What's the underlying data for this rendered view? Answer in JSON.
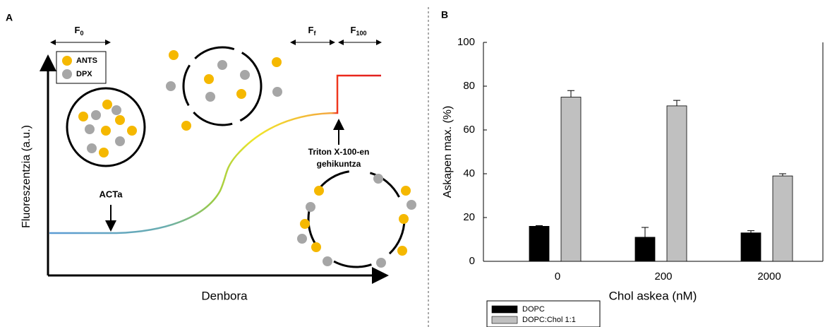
{
  "panel_a": {
    "label": "A",
    "f0": {
      "main": "F",
      "sub": "0"
    },
    "ff": {
      "main": "F",
      "sub": "f"
    },
    "f100": {
      "main": "F",
      "sub": "100"
    },
    "legend": [
      "ANTS",
      "DPX"
    ],
    "acta": "ACTa",
    "triton": [
      "Triton X-100-en",
      "gehikuntza"
    ],
    "ylabel": "Fluoreszentzia (a.u.)",
    "xlabel": "Denbora"
  },
  "chart_data": {
    "type": "bar",
    "panel_label": "B",
    "ylabel": "Askapen max. (%)",
    "xlabel": "Chol askea (nM)",
    "categories": [
      "0",
      "200",
      "2000"
    ],
    "series": [
      {
        "name": "DOPC",
        "color": "#000000",
        "values": [
          16,
          11,
          13
        ],
        "errors": [
          0.3,
          4.5,
          1
        ]
      },
      {
        "name": "DOPC:Chol 1:1",
        "color": "#c0c0c0",
        "values": [
          75,
          71,
          39
        ],
        "errors": [
          3,
          2.5,
          1
        ]
      }
    ],
    "ylim": [
      0,
      100
    ],
    "yticks": [
      0,
      20,
      40,
      60,
      80,
      100
    ]
  }
}
